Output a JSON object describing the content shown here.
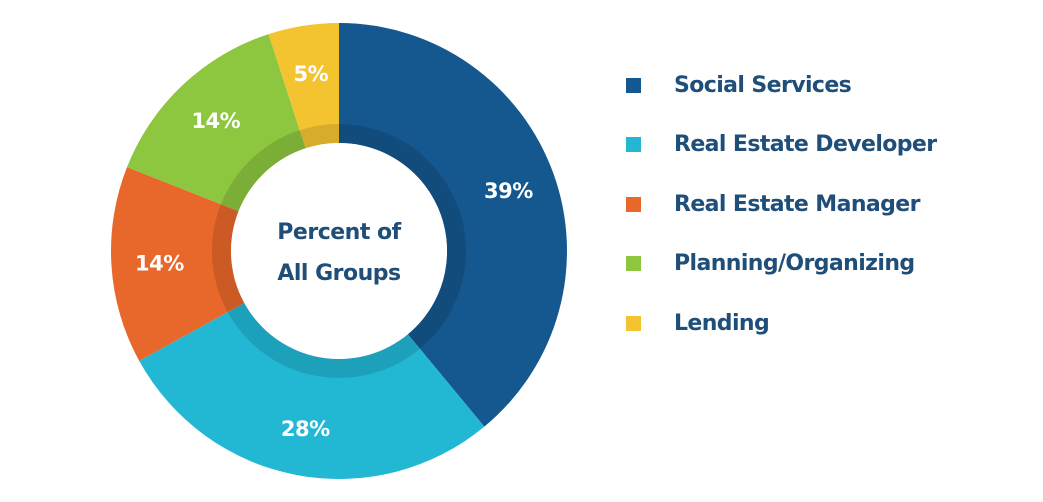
{
  "chart_data": {
    "type": "pie",
    "variant": "donut",
    "center_label": [
      "Percent of",
      "All Groups"
    ],
    "categories": [
      "Social Services",
      "Real Estate Developer",
      "Real Estate Manager",
      "Planning/Organizing",
      "Lending"
    ],
    "values": [
      39,
      28,
      14,
      14,
      5
    ],
    "value_labels": [
      "39%",
      "28%",
      "14%",
      "14%",
      "5%"
    ],
    "colors": [
      "#15578f",
      "#22b8d4",
      "#e8672a",
      "#8dc63f",
      "#f4c430"
    ],
    "legend": {
      "position": "right",
      "items": [
        {
          "label": "Social Services",
          "color": "#15578f"
        },
        {
          "label": "Real Estate Developer",
          "color": "#22b8d4"
        },
        {
          "label": "Real Estate Manager",
          "color": "#e8672a"
        },
        {
          "label": "Planning/Organizing",
          "color": "#8dc63f"
        },
        {
          "label": "Lending",
          "color": "#f4c430"
        }
      ]
    },
    "start_angle": "top",
    "direction": "clockwise"
  }
}
